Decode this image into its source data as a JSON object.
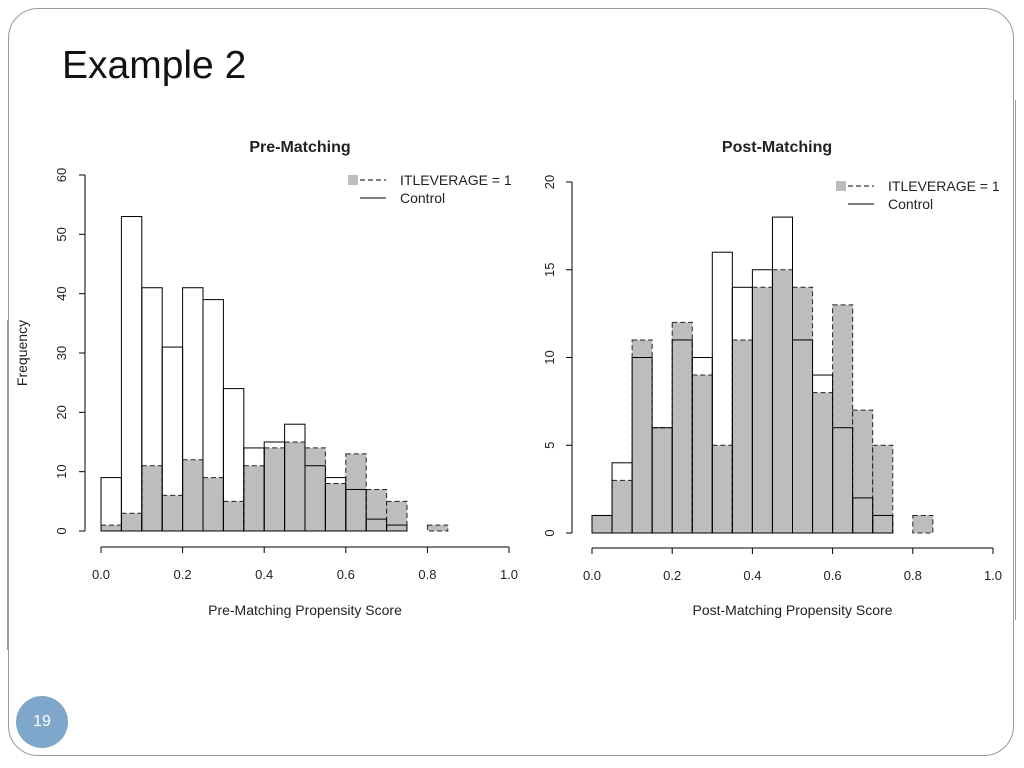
{
  "slide": {
    "title": "Example 2",
    "page_number": "19",
    "accent_color": "#7fa7cc"
  },
  "chart_data": [
    {
      "type": "bar",
      "title": "Pre-Matching",
      "xlabel": "Pre-Matching Propensity Score",
      "ylabel": "Frequency",
      "xlim": [
        0,
        1
      ],
      "ylim": [
        0,
        60
      ],
      "xticks": [
        "0.0",
        "0.2",
        "0.4",
        "0.6",
        "0.8",
        "1.0"
      ],
      "yticks": [
        "0",
        "10",
        "20",
        "30",
        "40",
        "50",
        "60"
      ],
      "legend_position": "top-right",
      "bin_width": 0.05,
      "bin_starts": [
        0,
        0.05,
        0.1,
        0.15,
        0.2,
        0.25,
        0.3,
        0.35,
        0.4,
        0.45,
        0.5,
        0.55,
        0.6,
        0.65,
        0.7,
        0.75,
        0.8
      ],
      "series": [
        {
          "name": "ITLEVERAGE = 1",
          "style": "filled-gray-dashed",
          "color": "#bdbdbd",
          "values": [
            1,
            3,
            11,
            6,
            12,
            9,
            5,
            11,
            14,
            15,
            14,
            8,
            13,
            7,
            5,
            0,
            1
          ]
        },
        {
          "name": "Control",
          "style": "outline-solid",
          "color": "#000000",
          "values": [
            9,
            53,
            41,
            31,
            41,
            39,
            24,
            14,
            15,
            18,
            11,
            9,
            7,
            2,
            1,
            0,
            0
          ]
        }
      ]
    },
    {
      "type": "bar",
      "title": "Post-Matching",
      "xlabel": "Post-Matching Propensity Score",
      "ylabel": "",
      "xlim": [
        0,
        1
      ],
      "ylim": [
        0,
        20
      ],
      "xticks": [
        "0.0",
        "0.2",
        "0.4",
        "0.6",
        "0.8",
        "1.0"
      ],
      "yticks": [
        "0",
        "5",
        "10",
        "15",
        "20"
      ],
      "legend_position": "top-right",
      "bin_width": 0.05,
      "bin_starts": [
        0,
        0.05,
        0.1,
        0.15,
        0.2,
        0.25,
        0.3,
        0.35,
        0.4,
        0.45,
        0.5,
        0.55,
        0.6,
        0.65,
        0.7,
        0.75,
        0.8
      ],
      "series": [
        {
          "name": "ITLEVERAGE = 1",
          "style": "filled-gray-dashed",
          "color": "#bdbdbd",
          "values": [
            1,
            3,
            11,
            6,
            12,
            9,
            5,
            11,
            14,
            15,
            14,
            8,
            13,
            7,
            5,
            0,
            1
          ]
        },
        {
          "name": "Control",
          "style": "outline-solid",
          "color": "#000000",
          "values": [
            1,
            4,
            10,
            6,
            11,
            10,
            16,
            14,
            15,
            18,
            11,
            9,
            6,
            2,
            1,
            0,
            0
          ]
        }
      ]
    }
  ]
}
